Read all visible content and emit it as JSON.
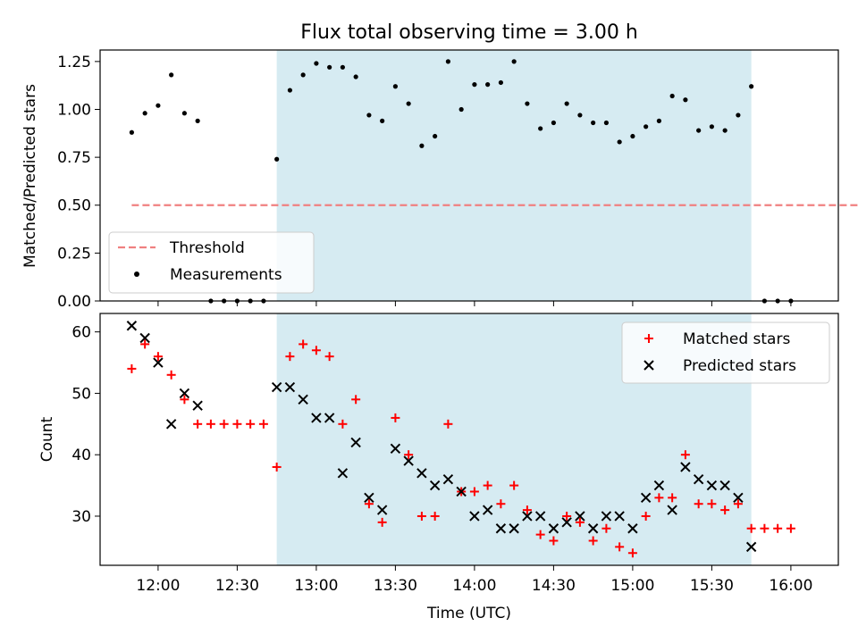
{
  "title": "Flux total observing time = 3.00 h",
  "colors": {
    "threshold": "#f08080",
    "measurements": "#000000",
    "matched": "#ff0000",
    "predicted": "#000000",
    "shade": "#add8e6"
  },
  "chart_data": [
    {
      "type": "scatter",
      "panel": "top",
      "ylabel": "Matched/Predicted stars",
      "ylim": [
        0,
        1.31
      ],
      "yticks": [
        0.0,
        0.25,
        0.5,
        0.75,
        1.0,
        1.25
      ],
      "ytick_labels": [
        "0.00",
        "0.25",
        "0.50",
        "0.75",
        "1.00",
        "1.25"
      ],
      "shaded_span_minutes": [
        765,
        945
      ],
      "threshold": {
        "name": "Threshold",
        "value": 0.5,
        "x_range_minutes": [
          710,
          1000
        ]
      },
      "legend": {
        "position": "lower-left",
        "entries": [
          "Threshold",
          "Measurements"
        ]
      },
      "series": [
        {
          "name": "Measurements",
          "x_minutes": [
            710,
            715,
            720,
            725,
            730,
            735,
            740,
            745,
            750,
            755,
            760,
            765,
            770,
            775,
            780,
            785,
            790,
            795,
            800,
            805,
            810,
            815,
            820,
            825,
            830,
            835,
            840,
            845,
            850,
            855,
            860,
            865,
            870,
            875,
            880,
            885,
            890,
            895,
            900,
            905,
            910,
            915,
            920,
            925,
            930,
            935,
            940,
            945,
            950,
            955,
            960
          ],
          "values": [
            0.88,
            0.98,
            1.02,
            1.18,
            0.98,
            0.94,
            0.0,
            0.0,
            0.0,
            0.0,
            0.0,
            0.74,
            1.1,
            1.18,
            1.24,
            1.22,
            1.22,
            1.17,
            0.97,
            0.94,
            1.12,
            1.03,
            0.81,
            0.86,
            1.25,
            1.0,
            1.13,
            1.13,
            1.14,
            1.25,
            1.03,
            0.9,
            0.93,
            1.03,
            0.97,
            0.93,
            0.93,
            0.83,
            0.86,
            0.91,
            0.94,
            1.07,
            1.05,
            0.89,
            0.91,
            0.89,
            0.97,
            1.12,
            0.0,
            0.0,
            0.0
          ]
        }
      ]
    },
    {
      "type": "scatter",
      "panel": "bottom",
      "xlabel": "Time (UTC)",
      "ylabel": "Count",
      "ylim": [
        22,
        63
      ],
      "yticks": [
        30,
        40,
        50,
        60
      ],
      "ytick_labels": [
        "30",
        "40",
        "50",
        "60"
      ],
      "xlim_minutes": [
        698,
        978
      ],
      "xticks_minutes": [
        720,
        750,
        780,
        810,
        840,
        870,
        900,
        930,
        960
      ],
      "xtick_labels": [
        "12:00",
        "12:30",
        "13:00",
        "13:30",
        "14:00",
        "14:30",
        "15:00",
        "15:30",
        "16:00"
      ],
      "shaded_span_minutes": [
        765,
        945
      ],
      "legend": {
        "position": "top-right",
        "entries": [
          "Matched stars",
          "Predicted stars"
        ]
      },
      "series": [
        {
          "name": "Matched stars",
          "marker": "plus",
          "x_minutes": [
            710,
            715,
            720,
            725,
            730,
            735,
            740,
            745,
            750,
            755,
            760,
            765,
            770,
            775,
            780,
            785,
            790,
            795,
            800,
            805,
            810,
            815,
            820,
            825,
            830,
            835,
            840,
            845,
            850,
            855,
            860,
            865,
            870,
            875,
            880,
            885,
            890,
            895,
            900,
            905,
            910,
            915,
            920,
            925,
            930,
            935,
            940,
            945,
            950,
            955,
            960
          ],
          "values": [
            54,
            58,
            56,
            53,
            49,
            45,
            45,
            45,
            45,
            45,
            45,
            38,
            56,
            58,
            57,
            56,
            45,
            49,
            32,
            29,
            46,
            40,
            30,
            30,
            45,
            34,
            34,
            35,
            32,
            35,
            31,
            27,
            26,
            30,
            29,
            26,
            28,
            25,
            24,
            30,
            33,
            33,
            40,
            32,
            32,
            31,
            32,
            28,
            28,
            28,
            28
          ]
        },
        {
          "name": "Predicted stars",
          "marker": "x",
          "x_minutes": [
            710,
            715,
            720,
            725,
            730,
            735,
            765,
            770,
            775,
            780,
            785,
            790,
            795,
            800,
            805,
            810,
            815,
            820,
            825,
            830,
            835,
            840,
            845,
            850,
            855,
            860,
            865,
            870,
            875,
            880,
            885,
            890,
            895,
            900,
            905,
            910,
            915,
            920,
            925,
            930,
            935,
            940,
            945
          ],
          "values": [
            61,
            59,
            55,
            45,
            50,
            48,
            51,
            51,
            49,
            46,
            46,
            37,
            42,
            33,
            31,
            41,
            39,
            37,
            35,
            36,
            34,
            30,
            31,
            28,
            28,
            30,
            30,
            28,
            29,
            30,
            28,
            30,
            30,
            28,
            33,
            35,
            31,
            38,
            36,
            35,
            35,
            33,
            25
          ]
        }
      ]
    }
  ]
}
